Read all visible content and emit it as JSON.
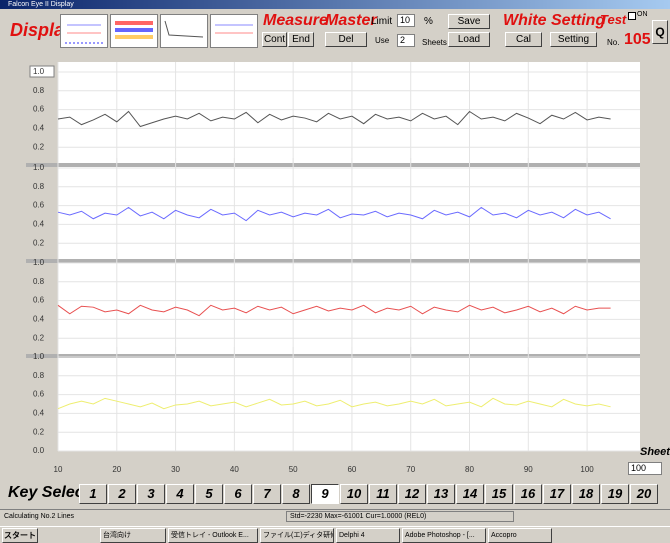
{
  "window": {
    "title": "Falcon Eye II Display"
  },
  "toolbar": {
    "display": "Display",
    "measure": {
      "label": "Measure",
      "cont": "Cont",
      "end": "End"
    },
    "master": {
      "label": "Master",
      "limit": "Limit",
      "limit_value": "10",
      "percent": "%",
      "del": "Del",
      "use": "Use",
      "use_value": "2",
      "sheets": "Sheets",
      "save": "Save",
      "load": "Load"
    },
    "white": {
      "label": "White",
      "cal": "Cal"
    },
    "setting": {
      "label": "Setting",
      "button": "Setting"
    },
    "test": {
      "label": "Test",
      "on": "ON",
      "no": "No.",
      "number": "105",
      "q": "Q"
    }
  },
  "sheets": {
    "label": "Sheets",
    "value": "100"
  },
  "key_select": {
    "label": "Key Select",
    "keys": [
      "1",
      "2",
      "3",
      "4",
      "5",
      "6",
      "7",
      "8",
      "9",
      "10",
      "11",
      "12",
      "13",
      "14",
      "15",
      "16",
      "17",
      "18",
      "19",
      "20"
    ],
    "selected_index": 8
  },
  "status": [
    "Calculating No.2 Lines",
    "Std=-2230 Max=-61001 Cur=1.0000 (REL0)"
  ],
  "taskbar": {
    "start": "スタート",
    "items": [
      "台湾向け",
      "受信トレイ - Outlook E...",
      "ファイル(エ)ディタ研修...",
      "Delphi 4",
      "Adobe Photoshop - [...",
      "Accopro"
    ]
  },
  "chart_data": [
    {
      "type": "line",
      "xlim": [
        10,
        109
      ],
      "ylim": [
        0,
        1
      ],
      "yticks": [
        0.2,
        0.4,
        0.6,
        0.8,
        {
          "value": 1,
          "label": "1.0"
        }
      ],
      "grid": true,
      "x": [
        10,
        12,
        14,
        16,
        18,
        20,
        22,
        24,
        26,
        28,
        30,
        32,
        34,
        36,
        38,
        40,
        42,
        44,
        46,
        48,
        50,
        52,
        54,
        56,
        58,
        60,
        62,
        64,
        66,
        68,
        70,
        72,
        74,
        76,
        78,
        80,
        82,
        84,
        86,
        88,
        90,
        92,
        94,
        96,
        98,
        100,
        102,
        104
      ],
      "series": [
        {
          "color": "#555555",
          "values": [
            0.5,
            0.52,
            0.44,
            0.49,
            0.55,
            0.47,
            0.58,
            0.42,
            0.46,
            0.5,
            0.53,
            0.5,
            0.56,
            0.48,
            0.52,
            0.5,
            0.57,
            0.46,
            0.55,
            0.49,
            0.53,
            0.51,
            0.47,
            0.56,
            0.5,
            0.53,
            0.45,
            0.55,
            0.5,
            0.52,
            0.48,
            0.56,
            0.5,
            0.53,
            0.44,
            0.58,
            0.5,
            0.52,
            0.48,
            0.56,
            0.51,
            0.45,
            0.54,
            0.5,
            0.57,
            0.49,
            0.52,
            0.5
          ]
        }
      ]
    },
    {
      "type": "line",
      "xlim": [
        10,
        109
      ],
      "ylim": [
        0,
        1
      ],
      "yticks": [
        0.2,
        0.4,
        0.6,
        0.8,
        {
          "value": 1,
          "label": "1.0"
        }
      ],
      "grid": true,
      "x": [
        10,
        12,
        14,
        16,
        18,
        20,
        22,
        24,
        26,
        28,
        30,
        32,
        34,
        36,
        38,
        40,
        42,
        44,
        46,
        48,
        50,
        52,
        54,
        56,
        58,
        60,
        62,
        64,
        66,
        68,
        70,
        72,
        74,
        76,
        78,
        80,
        82,
        84,
        86,
        88,
        90,
        92,
        94,
        96,
        98,
        100,
        102,
        104
      ],
      "series": [
        {
          "color": "#6a6aff",
          "values": [
            0.53,
            0.5,
            0.54,
            0.46,
            0.52,
            0.5,
            0.58,
            0.49,
            0.53,
            0.46,
            0.55,
            0.5,
            0.47,
            0.56,
            0.5,
            0.52,
            0.44,
            0.55,
            0.5,
            0.53,
            0.48,
            0.52,
            0.5,
            0.56,
            0.47,
            0.51,
            0.5,
            0.54,
            0.48,
            0.52,
            0.5,
            0.46,
            0.55,
            0.5,
            0.53,
            0.48,
            0.58,
            0.5,
            0.52,
            0.47,
            0.55,
            0.5,
            0.53,
            0.47,
            0.56,
            0.5,
            0.53,
            0.46
          ]
        }
      ]
    },
    {
      "type": "line",
      "xlim": [
        10,
        109
      ],
      "ylim": [
        0,
        1
      ],
      "yticks": [
        0.2,
        0.4,
        0.6,
        0.8,
        {
          "value": 1,
          "label": "1.0"
        }
      ],
      "grid": true,
      "x": [
        10,
        12,
        14,
        16,
        18,
        20,
        22,
        24,
        26,
        28,
        30,
        32,
        34,
        36,
        38,
        40,
        42,
        44,
        46,
        48,
        50,
        52,
        54,
        56,
        58,
        60,
        62,
        64,
        66,
        68,
        70,
        72,
        74,
        76,
        78,
        80,
        82,
        84,
        86,
        88,
        90,
        92,
        94,
        96,
        98,
        100,
        102,
        104
      ],
      "series": [
        {
          "color": "#e85050",
          "values": [
            0.55,
            0.46,
            0.54,
            0.53,
            0.48,
            0.5,
            0.46,
            0.55,
            0.5,
            0.48,
            0.53,
            0.5,
            0.44,
            0.55,
            0.5,
            0.52,
            0.47,
            0.54,
            0.5,
            0.53,
            0.46,
            0.5,
            0.54,
            0.49,
            0.52,
            0.5,
            0.55,
            0.47,
            0.52,
            0.5,
            0.54,
            0.46,
            0.53,
            0.5,
            0.48,
            0.55,
            0.5,
            0.53,
            0.47,
            0.5,
            0.54,
            0.48,
            0.52,
            0.46,
            0.54,
            0.5,
            0.52,
            0.52
          ]
        }
      ]
    },
    {
      "type": "line",
      "xlim": [
        10,
        109
      ],
      "ylim": [
        0,
        1
      ],
      "yticks": [
        {
          "value": 0,
          "label": "0.0"
        },
        0.2,
        0.4,
        0.6,
        0.8,
        {
          "value": 1,
          "label": "1.0"
        }
      ],
      "grid": true,
      "xticks": [
        10,
        20,
        30,
        40,
        50,
        60,
        70,
        80,
        90,
        100
      ],
      "x": [
        10,
        12,
        14,
        16,
        18,
        20,
        22,
        24,
        26,
        28,
        30,
        32,
        34,
        36,
        38,
        40,
        42,
        44,
        46,
        48,
        50,
        52,
        54,
        56,
        58,
        60,
        62,
        64,
        66,
        68,
        70,
        72,
        74,
        76,
        78,
        80,
        82,
        84,
        86,
        88,
        90,
        92,
        94,
        96,
        98,
        100,
        102,
        104
      ],
      "series": [
        {
          "color": "#eeee70",
          "values": [
            0.45,
            0.5,
            0.53,
            0.5,
            0.56,
            0.53,
            0.5,
            0.47,
            0.51,
            0.45,
            0.49,
            0.5,
            0.53,
            0.48,
            0.5,
            0.52,
            0.47,
            0.51,
            0.55,
            0.49,
            0.5,
            0.53,
            0.48,
            0.5,
            0.54,
            0.47,
            0.5,
            0.52,
            0.48,
            0.5,
            0.53,
            0.5,
            0.55,
            0.48,
            0.5,
            0.52,
            0.47,
            0.56,
            0.5,
            0.49,
            0.53,
            0.5,
            0.47,
            0.55,
            0.5,
            0.48,
            0.5,
            0.47
          ]
        }
      ]
    }
  ]
}
